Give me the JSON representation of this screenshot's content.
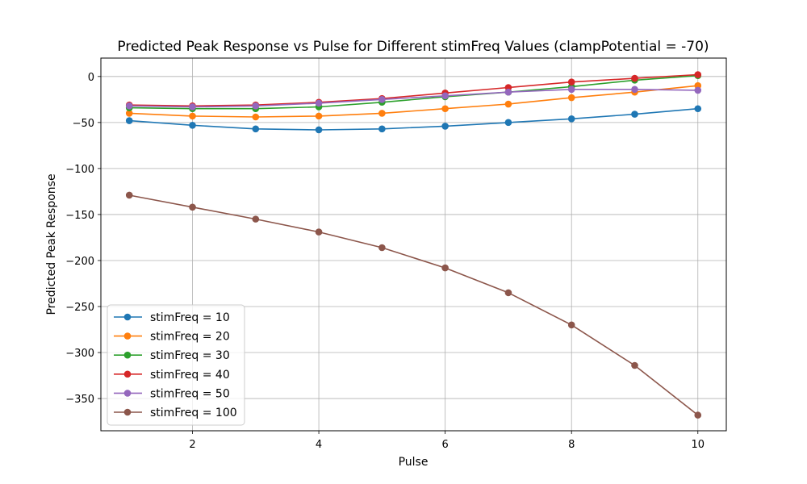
{
  "chart_data": {
    "type": "line",
    "title": "Predicted Peak Response vs Pulse for Different stimFreq Values (clampPotential = -70)",
    "xlabel": "Pulse",
    "ylabel": "Predicted Peak Response",
    "xlim": [
      0.55,
      10.45
    ],
    "ylim": [
      -385,
      20
    ],
    "xticks": [
      2,
      4,
      6,
      8,
      10
    ],
    "yticks": [
      0,
      -50,
      -100,
      -150,
      -200,
      -250,
      -300,
      -350
    ],
    "grid": true,
    "legend_position": "lower-left",
    "x": [
      1,
      2,
      3,
      4,
      5,
      6,
      7,
      8,
      9,
      10
    ],
    "series": [
      {
        "name": "stimFreq = 10",
        "color": "#1f77b4",
        "values": [
          -48,
          -53,
          -57,
          -58,
          -57,
          -54,
          -50,
          -46,
          -41,
          -35
        ]
      },
      {
        "name": "stimFreq = 20",
        "color": "#ff7f0e",
        "values": [
          -40,
          -43,
          -44,
          -43,
          -40,
          -35,
          -30,
          -23,
          -17,
          -10
        ]
      },
      {
        "name": "stimFreq = 30",
        "color": "#2ca02c",
        "values": [
          -34,
          -35,
          -35,
          -33,
          -28,
          -22,
          -17,
          -11,
          -4,
          1
        ]
      },
      {
        "name": "stimFreq = 40",
        "color": "#d62728",
        "values": [
          -31,
          -32,
          -31,
          -28,
          -24,
          -18,
          -12,
          -6,
          -2,
          2
        ]
      },
      {
        "name": "stimFreq = 50",
        "color": "#9467bd",
        "values": [
          -32,
          -33,
          -32,
          -29,
          -25,
          -21,
          -17,
          -14,
          -14,
          -15
        ]
      },
      {
        "name": "stimFreq = 100",
        "color": "#8c564b",
        "values": [
          -129,
          -142,
          -155,
          -169,
          -186,
          -208,
          -235,
          -270,
          -314,
          -368
        ]
      }
    ]
  }
}
